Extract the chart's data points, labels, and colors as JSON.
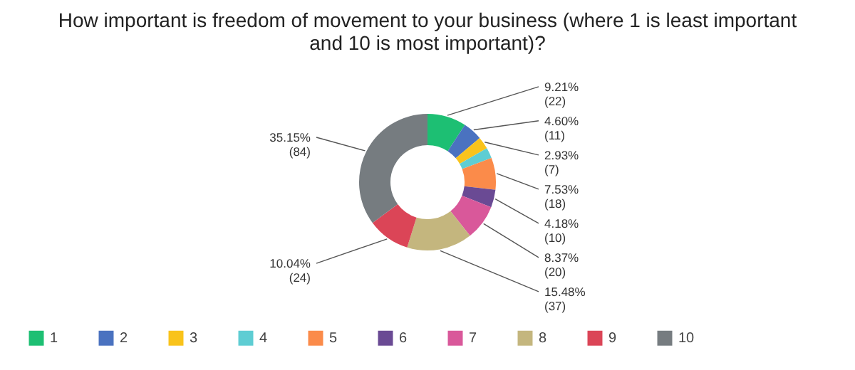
{
  "chart_data": {
    "type": "donut",
    "title": "How important is freedom of movement to your business (where 1 is least important and 10 is most important)?",
    "categories": [
      "1",
      "2",
      "3",
      "4",
      "5",
      "6",
      "7",
      "8",
      "9",
      "10"
    ],
    "values": [
      22,
      11,
      7,
      6,
      18,
      10,
      20,
      37,
      24,
      84
    ],
    "value_labels": [
      "9.21%\n(22)",
      "4.60%\n(11)",
      "2.93%\n(7)",
      null,
      "7.53%\n(18)",
      "4.18%\n(10)",
      "8.37%\n(20)",
      "15.48%\n(37)",
      "10.04%\n(24)",
      "35.15%\n(84)"
    ],
    "colors": [
      "#1dbf73",
      "#4a72c0",
      "#f9c31b",
      "#5ecdd3",
      "#fb8b4a",
      "#6a4a94",
      "#d9589a",
      "#c4b67e",
      "#db4557",
      "#767c80"
    ],
    "legend": "bottom"
  }
}
